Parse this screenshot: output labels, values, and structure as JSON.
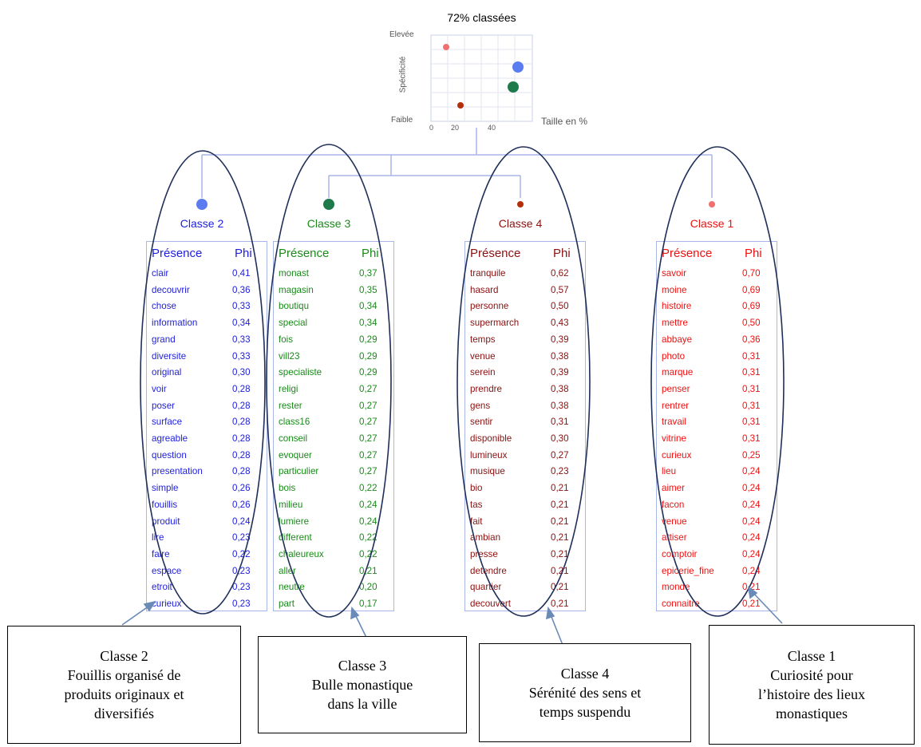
{
  "scatter": {
    "title": "72% classées",
    "y_high": "Elevée",
    "y_low": "Faible",
    "y_label": "Spécificité",
    "x_label": "Taille en %",
    "x_ticks": [
      "0",
      "20",
      "40"
    ],
    "points_note": "size vs specificity per class",
    "points": [
      {
        "class": "Classe 1",
        "size": 6,
        "specificity": 0.85,
        "color": "#f07070"
      },
      {
        "class": "Classe 2",
        "size": 51,
        "specificity": 0.6,
        "color": "#5a7cf0"
      },
      {
        "class": "Classe 3",
        "size": 48,
        "specificity": 0.35,
        "color": "#1e7a4a"
      },
      {
        "class": "Classe 4",
        "size": 15,
        "specificity": 0.12,
        "color": "#b52e0a"
      }
    ]
  },
  "columns": [
    {
      "title": "Classe 2",
      "color": "#2020e0",
      "dot": "#5a7cf0",
      "header_word": "Présence",
      "header_phi": "Phi",
      "rows": [
        [
          "clair",
          "0,41"
        ],
        [
          "decouvrir",
          "0,36"
        ],
        [
          "chose",
          "0,33"
        ],
        [
          "information",
          "0,34"
        ],
        [
          "grand",
          "0,33"
        ],
        [
          "diversite",
          "0,33"
        ],
        [
          "original",
          "0,30"
        ],
        [
          "voir",
          "0,28"
        ],
        [
          "poser",
          "0,28"
        ],
        [
          "surface",
          "0,28"
        ],
        [
          "agreable",
          "0,28"
        ],
        [
          "question",
          "0,28"
        ],
        [
          "presentation",
          "0,28"
        ],
        [
          "simple",
          "0,26"
        ],
        [
          "fouillis",
          "0,26"
        ],
        [
          "produit",
          "0,24"
        ],
        [
          "lire",
          "0,23"
        ],
        [
          "faire",
          "0,22"
        ],
        [
          "espace",
          "0,23"
        ],
        [
          "etroit",
          "0,23"
        ],
        [
          "curieux",
          "0,23"
        ]
      ]
    },
    {
      "title": "Classe 3",
      "color": "#1a8a1a",
      "dot": "#1e7a4a",
      "header_word": "Présence",
      "header_phi": "Phi",
      "rows": [
        [
          "monast",
          "0,37"
        ],
        [
          "magasin",
          "0,35"
        ],
        [
          "boutiqu",
          "0,34"
        ],
        [
          "special",
          "0,34"
        ],
        [
          "fois",
          "0,29"
        ],
        [
          "vill23",
          "0,29"
        ],
        [
          "specialiste",
          "0,29"
        ],
        [
          "religi",
          "0,27"
        ],
        [
          "rester",
          "0,27"
        ],
        [
          "class16",
          "0,27"
        ],
        [
          "conseil",
          "0,27"
        ],
        [
          "evoquer",
          "0,27"
        ],
        [
          "particulier",
          "0,27"
        ],
        [
          "bois",
          "0,22"
        ],
        [
          "milieu",
          "0,24"
        ],
        [
          "lumiere",
          "0,24"
        ],
        [
          "different",
          "0,22"
        ],
        [
          "chaleureux",
          "0,22"
        ],
        [
          "aller",
          "0,21"
        ],
        [
          "neutre",
          "0,20"
        ],
        [
          "part",
          "0,17"
        ]
      ]
    },
    {
      "title": "Classe 4",
      "color": "#8a1010",
      "dot": "#b52e0a",
      "header_word": "Présence",
      "header_phi": "Phi",
      "rows": [
        [
          "tranquile",
          "0,62"
        ],
        [
          "hasard",
          "0,57"
        ],
        [
          "personne",
          "0,50"
        ],
        [
          "supermarch",
          "0,43"
        ],
        [
          "temps",
          "0,39"
        ],
        [
          "venue",
          "0,38"
        ],
        [
          "serein",
          "0,39"
        ],
        [
          "prendre",
          "0,38"
        ],
        [
          "gens",
          "0,38"
        ],
        [
          "sentir",
          "0,31"
        ],
        [
          "disponible",
          "0,30"
        ],
        [
          "lumineux",
          "0,27"
        ],
        [
          "musique",
          "0,23"
        ],
        [
          "bio",
          "0,21"
        ],
        [
          "tas",
          "0,21"
        ],
        [
          "fait",
          "0,21"
        ],
        [
          "ambian",
          "0,21"
        ],
        [
          "presse",
          "0,21"
        ],
        [
          "detendre",
          "0,21"
        ],
        [
          "quartier",
          "0,21"
        ],
        [
          "decouvert",
          "0,21"
        ]
      ]
    },
    {
      "title": "Classe 1",
      "color": "#f01010",
      "dot": "#f07070",
      "header_word": "Présence",
      "header_phi": "Phi",
      "rows": [
        [
          "savoir",
          "0,70"
        ],
        [
          "moine",
          "0,69"
        ],
        [
          "histoire",
          "0,69"
        ],
        [
          "mettre",
          "0,50"
        ],
        [
          "abbaye",
          "0,36"
        ],
        [
          "photo",
          "0,31"
        ],
        [
          "marque",
          "0,31"
        ],
        [
          "penser",
          "0,31"
        ],
        [
          "rentrer",
          "0,31"
        ],
        [
          "travail",
          "0,31"
        ],
        [
          "vitrine",
          "0,31"
        ],
        [
          "curieux",
          "0,25"
        ],
        [
          "lieu",
          "0,24"
        ],
        [
          "aimer",
          "0,24"
        ],
        [
          "facon",
          "0,24"
        ],
        [
          "venue",
          "0,24"
        ],
        [
          "attiser",
          "0,24"
        ],
        [
          "comptoir",
          "0,24"
        ],
        [
          "epicerie_fine",
          "0,24"
        ],
        [
          "monde",
          "0,21"
        ],
        [
          "connaitre",
          "0,21"
        ]
      ]
    }
  ],
  "annotations": [
    {
      "lines": [
        "Classe 2",
        "Fouillis organisé de",
        "produits originaux et",
        "diversifiés"
      ]
    },
    {
      "lines": [
        "Classe 3",
        "Bulle monastique",
        "dans la ville"
      ]
    },
    {
      "lines": [
        "Classe 4",
        "Sérénité des sens et",
        "temps suspendu"
      ]
    },
    {
      "lines": [
        "Classe 1",
        "Curiosité pour",
        "l’histoire des lieux",
        "monastiques"
      ]
    }
  ]
}
